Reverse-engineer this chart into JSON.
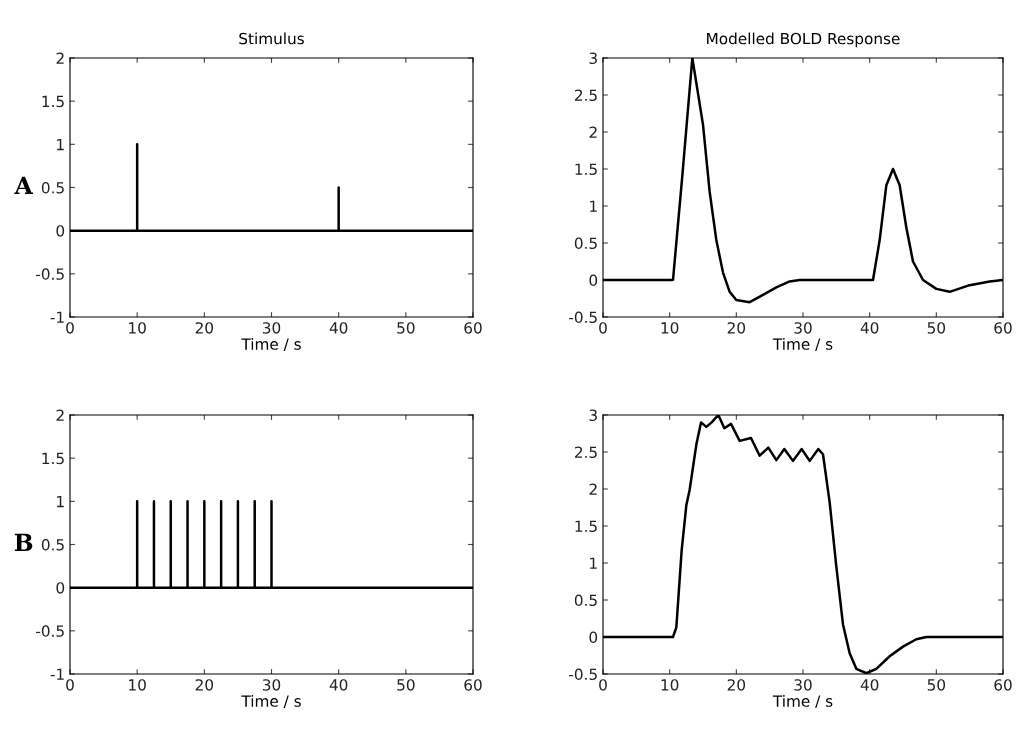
{
  "chart_data": [
    {
      "type": "line",
      "title": "Stimulus",
      "xlabel": "Time / s",
      "annotations": [
        "A"
      ],
      "xlim": [
        0,
        60
      ],
      "xticks": [
        0,
        10,
        20,
        30,
        40,
        50,
        60
      ],
      "ylim": [
        -1,
        2
      ],
      "yticks": [
        -1,
        -0.5,
        0,
        0.5,
        1,
        1.5,
        2
      ],
      "grid": false,
      "series": [
        {
          "color": "#000000",
          "x": [
            0,
            10,
            10,
            10,
            40,
            40,
            40,
            60
          ],
          "values": [
            0,
            0,
            1,
            0,
            0,
            0.5,
            0,
            0
          ]
        }
      ]
    },
    {
      "type": "line",
      "title": "Modelled BOLD Response",
      "xlabel": "Time / s",
      "xlim": [
        0,
        60
      ],
      "xticks": [
        0,
        10,
        20,
        30,
        40,
        50,
        60
      ],
      "ylim": [
        -0.5,
        3
      ],
      "yticks": [
        -0.5,
        0,
        0.5,
        1,
        1.5,
        2,
        2.5,
        3
      ],
      "grid": false,
      "series": [
        {
          "color": "#000000",
          "x": [
            0,
            10.5,
            11.9,
            13.4,
            15,
            16,
            17,
            18,
            19,
            20,
            22,
            24,
            26,
            28,
            29.5,
            40.5,
            41.5,
            42.5,
            43.5,
            44.5,
            45.5,
            46.5,
            48,
            50,
            52,
            55,
            58,
            60
          ],
          "values": [
            0,
            0,
            1.41,
            3.0,
            2.1,
            1.19,
            0.54,
            0.1,
            -0.16,
            -0.27,
            -0.3,
            -0.2,
            -0.1,
            -0.02,
            0,
            0,
            0.54,
            1.28,
            1.5,
            1.28,
            0.71,
            0.25,
            0,
            -0.12,
            -0.16,
            -0.07,
            -0.02,
            0
          ]
        }
      ]
    },
    {
      "type": "line",
      "xlabel": "Time / s",
      "annotations": [
        "B"
      ],
      "xlim": [
        0,
        60
      ],
      "xticks": [
        0,
        10,
        20,
        30,
        40,
        50,
        60
      ],
      "ylim": [
        -1,
        2
      ],
      "yticks": [
        -1,
        -0.5,
        0,
        0.5,
        1,
        1.5,
        2
      ],
      "grid": false,
      "series": [
        {
          "color": "#000000",
          "x": [
            0,
            10,
            10,
            10,
            12.5,
            12.5,
            12.5,
            15,
            15,
            15,
            17.5,
            17.5,
            17.5,
            20,
            20,
            20,
            22.5,
            22.5,
            22.5,
            25,
            25,
            25,
            27.5,
            27.5,
            27.5,
            30,
            30,
            30,
            60
          ],
          "values": [
            0,
            0,
            1,
            0,
            0,
            1,
            0,
            0,
            1,
            0,
            0,
            1,
            0,
            0,
            1,
            0,
            0,
            1,
            0,
            0,
            1,
            0,
            0,
            1,
            0,
            0,
            1,
            0,
            0
          ]
        }
      ]
    },
    {
      "type": "line",
      "xlabel": "Time / s",
      "xlim": [
        0,
        60
      ],
      "xticks": [
        0,
        10,
        20,
        30,
        40,
        50,
        60
      ],
      "ylim": [
        -0.5,
        3
      ],
      "yticks": [
        -0.5,
        0,
        0.5,
        1,
        1.5,
        2,
        2.5,
        3
      ],
      "grid": false,
      "series": [
        {
          "color": "#000000",
          "x": [
            0,
            10.5,
            11,
            11.8,
            12.5,
            13,
            14,
            14.7,
            15.5,
            16.3,
            17.3,
            18.2,
            19.2,
            20.5,
            22.2,
            23.5,
            24.8,
            26,
            27.2,
            28.5,
            29.8,
            31,
            32.3,
            33,
            34,
            35,
            36,
            37,
            38,
            39.5,
            41,
            43,
            45,
            47,
            48.5,
            60
          ],
          "values": [
            0,
            0,
            0.13,
            1.17,
            1.78,
            1.99,
            2.6,
            2.9,
            2.84,
            2.9,
            3.0,
            2.82,
            2.88,
            2.65,
            2.69,
            2.45,
            2.56,
            2.39,
            2.54,
            2.38,
            2.54,
            2.38,
            2.54,
            2.47,
            1.82,
            0.95,
            0.17,
            -0.22,
            -0.43,
            -0.49,
            -0.43,
            -0.26,
            -0.13,
            -0.03,
            0,
            0
          ]
        }
      ]
    }
  ]
}
